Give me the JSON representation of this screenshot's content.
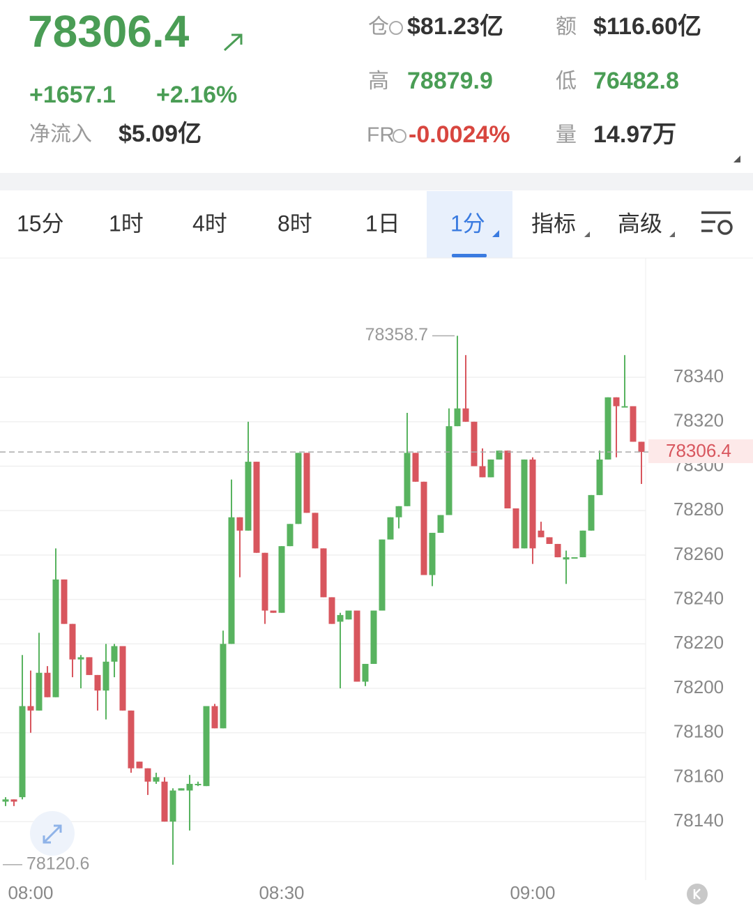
{
  "header": {
    "price": "78306.4",
    "change": "+1657.1",
    "change_pct": "+2.16%",
    "net_inflow_label": "净流入",
    "net_inflow": "$5.09亿",
    "oi_label": "仓",
    "oi": "$81.23亿",
    "turnover_label": "额",
    "turnover": "$116.60亿",
    "high_label": "高",
    "high": "78879.9",
    "low_label": "低",
    "low": "76482.8",
    "fr_label": "FR",
    "fr": "-0.0024%",
    "volume_label": "量",
    "volume": "14.97万"
  },
  "tabs": [
    "15分",
    "1时",
    "4时",
    "8时",
    "1日",
    "1分",
    "指标",
    "高级"
  ],
  "chart_data": {
    "type": "candlestick",
    "up_color": "#58b35f",
    "down_color": "#d8565e",
    "grid": true,
    "categories": [
      null,
      null,
      null,
      "08:00",
      null,
      null,
      null,
      null,
      null,
      null,
      null,
      null,
      null,
      null,
      null,
      null,
      null,
      null,
      null,
      null,
      null,
      null,
      null,
      null,
      null,
      null,
      null,
      null,
      null,
      null,
      null,
      null,
      null,
      "08:30",
      null,
      null,
      null,
      null,
      null,
      null,
      null,
      null,
      null,
      null,
      null,
      null,
      null,
      null,
      null,
      null,
      null,
      null,
      null,
      null,
      null,
      null,
      null,
      null,
      null,
      null,
      null,
      null,
      null,
      "09:00",
      null,
      null,
      null,
      null,
      null,
      null,
      null,
      null,
      null,
      null,
      null,
      null,
      null
    ],
    "open": [
      78149,
      78150,
      78151,
      78192,
      78190,
      78207,
      78196,
      78249,
      78229,
      78213,
      78214,
      78206,
      78199,
      78212,
      78219,
      78190,
      78167,
      78164,
      78158,
      78158,
      78140,
      78154,
      78154,
      78157,
      78156,
      78192,
      78182,
      78220,
      78277,
      78271,
      78302,
      78261,
      78235,
      78234,
      78264,
      78274,
      78306,
      78279,
      78263,
      78241,
      78230,
      78231,
      78235,
      78203,
      78211,
      78235,
      78267,
      78277,
      78282,
      78306,
      78293,
      78251,
      78270,
      78278,
      78318,
      78326,
      78320,
      78300,
      78295,
      78303,
      78307,
      78281,
      78263,
      78303,
      78271,
      78268,
      78265,
      78258,
      78259,
      78259,
      78271,
      78287,
      78303,
      78331,
      78327,
      78327,
      78311
    ],
    "high": [
      78151,
      78150,
      78215,
      78208,
      78225,
      78210,
      78263,
      78249,
      78229,
      78215,
      78214,
      78206,
      78220,
      78220,
      78219,
      78190,
      78167,
      78164,
      78162,
      78160,
      78155,
      78155,
      78161,
      78158,
      78192,
      78193,
      78226,
      78294,
      78277,
      78320,
      78302,
      78261,
      78235,
      78264,
      78274,
      78306,
      78306,
      78279,
      78263,
      78241,
      78234,
      78235,
      78235,
      78211,
      78235,
      78267,
      78277,
      78282,
      78324,
      78306,
      78293,
      78270,
      78278,
      78326,
      78358.7,
      78350,
      78320,
      78308,
      78303,
      78307,
      78307,
      78281,
      78303,
      78304,
      78275,
      78268,
      78265,
      78262,
      78259,
      78271,
      78287,
      78307,
      78331,
      78331,
      78350,
      78327,
      78311
    ],
    "low": [
      78147,
      78147,
      78150,
      78180,
      78190,
      78196,
      78196,
      78229,
      78205,
      78200,
      78206,
      78190,
      78186,
      78205,
      78190,
      78162,
      78164,
      78152,
      78157,
      78140,
      78120.6,
      78154,
      78136,
      78156,
      78156,
      78182,
      78182,
      78220,
      78250,
      78271,
      78261,
      78229,
      78234,
      78234,
      78264,
      78274,
      78279,
      78263,
      78241,
      78229,
      78200,
      78231,
      78203,
      78201,
      78211,
      78235,
      78267,
      78272,
      78282,
      78293,
      78251,
      78246,
      78270,
      78278,
      78318,
      78320,
      78300,
      78295,
      78295,
      78303,
      78281,
      78263,
      78263,
      78256,
      78268,
      78265,
      78259,
      78247,
      78259,
      78259,
      78271,
      78287,
      78303,
      78304,
      78327,
      78311,
      78292
    ],
    "close": [
      78150,
      78149,
      78192,
      78190,
      78207,
      78196,
      78249,
      78229,
      78213,
      78214,
      78206,
      78199,
      78212,
      78219,
      78190,
      78164,
      78164,
      78158,
      78160,
      78140,
      78154,
      78155,
      78157,
      78157,
      78192,
      78182,
      78220,
      78277,
      78271,
      78302,
      78261,
      78235,
      78234,
      78264,
      78274,
      78306,
      78279,
      78263,
      78241,
      78229,
      78233,
      78235,
      78203,
      78211,
      78235,
      78267,
      78277,
      78282,
      78306,
      78293,
      78251,
      78270,
      78278,
      78318,
      78326,
      78320,
      78300,
      78295,
      78303,
      78307,
      78281,
      78263,
      78303,
      78263,
      78268,
      78265,
      78259,
      78259,
      78259,
      78271,
      78287,
      78303,
      78331,
      78327,
      78327,
      78311,
      78306.4
    ],
    "ylim": [
      78114.3,
      78393.7
    ],
    "yticks": [
      78140,
      78160,
      78180,
      78200,
      78220,
      78240,
      78260,
      78280,
      78300,
      78320,
      78340
    ]
  }
}
